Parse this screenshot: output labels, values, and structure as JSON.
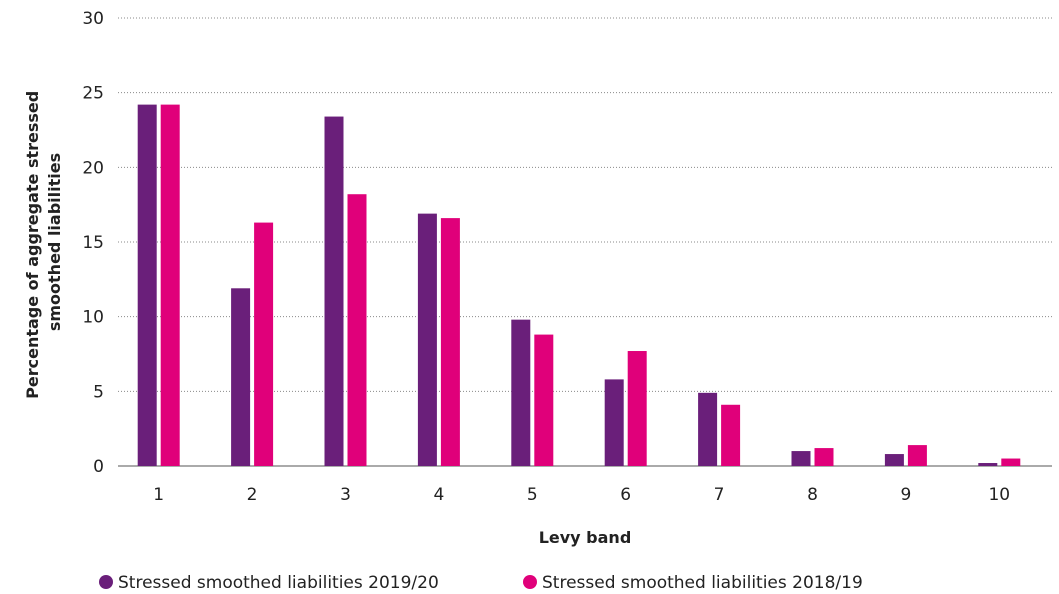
{
  "chart_data": {
    "type": "bar",
    "categories": [
      "1",
      "2",
      "3",
      "4",
      "5",
      "6",
      "7",
      "8",
      "9",
      "10"
    ],
    "series": [
      {
        "name": "Stressed smoothed liabilities 2019/20",
        "color": "#6a1f7a",
        "values": [
          24.2,
          11.9,
          23.4,
          16.9,
          9.8,
          5.8,
          4.9,
          1.0,
          0.8,
          0.2
        ]
      },
      {
        "name": "Stressed smoothed liabilities 2018/19",
        "color": "#e0007a",
        "values": [
          24.2,
          16.3,
          18.2,
          16.6,
          8.8,
          7.7,
          4.1,
          1.2,
          1.4,
          0.5
        ]
      }
    ],
    "xlabel": "Levy band",
    "ylabel_lines": [
      "Percentage of aggregate stressed",
      "smoothed liabilities"
    ],
    "ylim": [
      0,
      30
    ],
    "yticks": [
      0,
      5,
      10,
      15,
      20,
      25,
      30
    ],
    "grid": true,
    "grid_style": "dotted",
    "legend_position": "bottom-left"
  }
}
